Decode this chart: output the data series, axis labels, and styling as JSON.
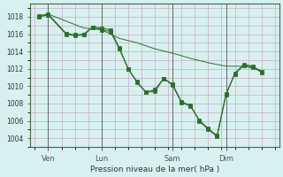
{
  "background_color": "#d8f0f0",
  "plot_bg_color": "#d8f0f0",
  "grid_color": "#c8b8c8",
  "line_color": "#2d6e2d",
  "marker_color": "#2d6e2d",
  "xlabel": "Pression niveau de la mer( hPa )",
  "ylim": [
    1003.0,
    1019.5
  ],
  "yticks": [
    1004,
    1006,
    1008,
    1010,
    1012,
    1014,
    1016,
    1018
  ],
  "xtick_labels": [
    "Ven",
    "Lun",
    "Sam",
    "Dim"
  ],
  "xtick_positions": [
    1,
    4,
    8,
    11
  ],
  "vline_positions": [
    1,
    4,
    8,
    11
  ],
  "xlim": [
    0,
    14
  ],
  "series_main": [
    [
      0.5,
      1018.1
    ],
    [
      1.0,
      1018.3
    ],
    [
      2.0,
      1016.1
    ],
    [
      2.5,
      1015.9
    ],
    [
      3.0,
      1016.0
    ],
    [
      3.5,
      1016.8
    ],
    [
      4.0,
      1016.7
    ],
    [
      4.5,
      1016.5
    ],
    [
      5.0,
      1014.4
    ],
    [
      5.5,
      1012.0
    ],
    [
      6.0,
      1010.4
    ],
    [
      6.5,
      1009.3
    ],
    [
      7.0,
      1009.6
    ],
    [
      7.5,
      1010.9
    ],
    [
      8.0,
      1010.2
    ],
    [
      8.5,
      1008.2
    ],
    [
      9.0,
      1007.8
    ],
    [
      9.5,
      1006.0
    ],
    [
      10.0,
      1005.0
    ],
    [
      10.5,
      1004.2
    ],
    [
      11.0,
      1009.0
    ],
    [
      11.5,
      1011.5
    ],
    [
      12.0,
      1012.5
    ],
    [
      12.5,
      1012.3
    ],
    [
      13.0,
      1011.7
    ]
  ],
  "series_smooth": [
    [
      0.5,
      1018.1
    ],
    [
      1.0,
      1018.3
    ],
    [
      2.0,
      1017.5
    ],
    [
      3.0,
      1016.7
    ],
    [
      4.0,
      1016.5
    ],
    [
      5.0,
      1015.5
    ],
    [
      6.0,
      1015.0
    ],
    [
      7.0,
      1014.3
    ],
    [
      8.0,
      1013.8
    ],
    [
      9.0,
      1013.2
    ],
    [
      10.0,
      1012.7
    ],
    [
      11.0,
      1012.3
    ],
    [
      12.0,
      1012.3
    ],
    [
      13.0,
      1011.8
    ]
  ],
  "series_second": [
    [
      0.5,
      1018.0
    ],
    [
      1.0,
      1018.2
    ],
    [
      2.0,
      1016.0
    ],
    [
      2.5,
      1015.8
    ],
    [
      3.0,
      1015.9
    ],
    [
      3.5,
      1016.8
    ],
    [
      4.0,
      1016.5
    ],
    [
      4.5,
      1016.3
    ],
    [
      5.0,
      1014.3
    ],
    [
      5.5,
      1012.0
    ],
    [
      6.0,
      1010.5
    ],
    [
      6.5,
      1009.3
    ],
    [
      7.0,
      1009.4
    ],
    [
      7.5,
      1010.9
    ],
    [
      8.0,
      1010.1
    ],
    [
      8.5,
      1008.1
    ],
    [
      9.0,
      1007.7
    ],
    [
      9.5,
      1006.1
    ],
    [
      10.0,
      1005.1
    ],
    [
      10.5,
      1004.3
    ],
    [
      11.0,
      1009.1
    ],
    [
      11.5,
      1011.4
    ],
    [
      12.0,
      1012.4
    ],
    [
      12.5,
      1012.2
    ],
    [
      13.0,
      1011.6
    ]
  ]
}
